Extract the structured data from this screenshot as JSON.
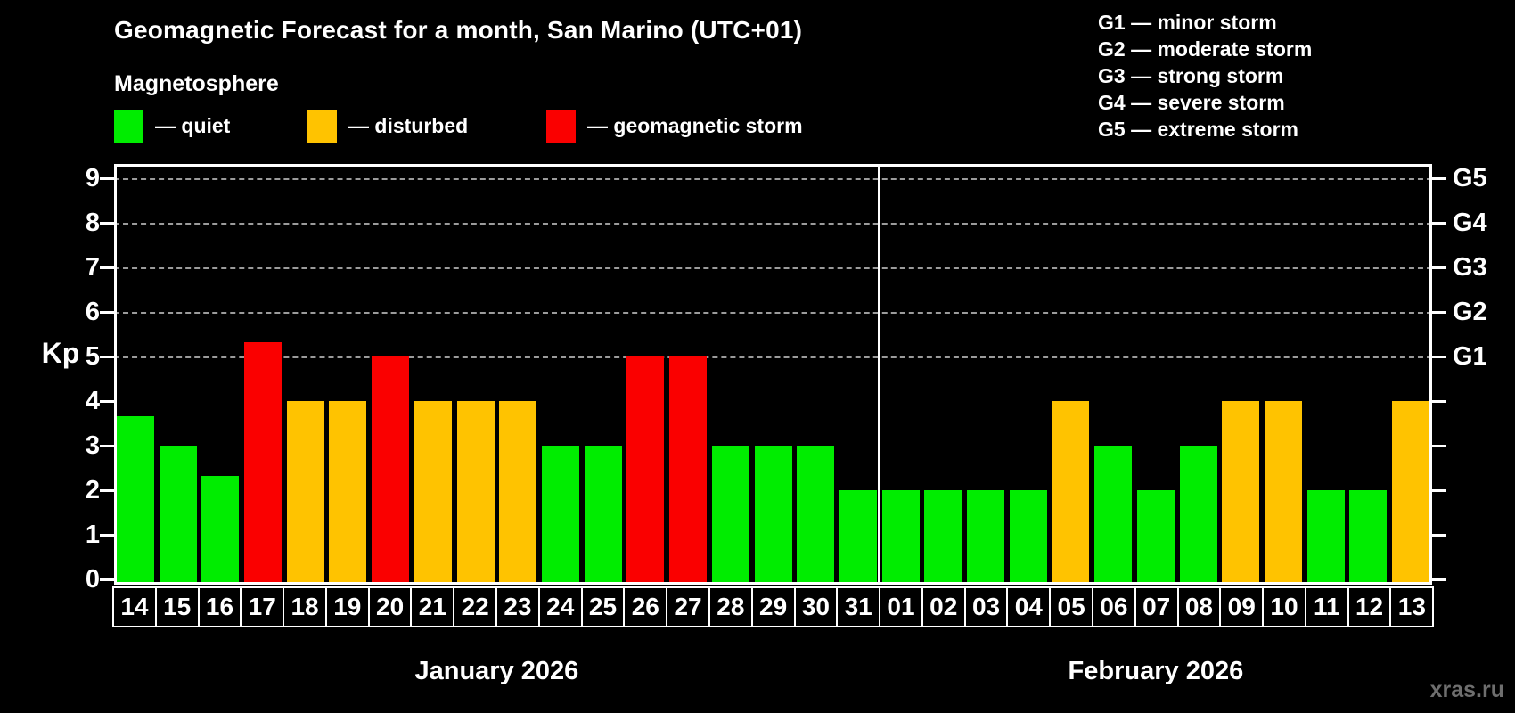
{
  "chart_data": {
    "type": "bar",
    "title": "Geomagnetic Forecast for a month, San Marino (UTC+01)",
    "legend": {
      "title": "Magnetosphere",
      "items": [
        {
          "status": "quiet",
          "color": "#00ed00",
          "label": "— quiet"
        },
        {
          "status": "disturbed",
          "color": "#ffc300",
          "label": "— disturbed"
        },
        {
          "status": "storm",
          "color": "#fa0000",
          "label": "— geomagnetic storm"
        }
      ]
    },
    "storm_scale": [
      "G1 — minor storm",
      "G2 — moderate storm",
      "G3 — strong storm",
      "G4 — severe storm",
      "G5 — extreme storm"
    ],
    "ylabel": "Kp",
    "ylim": [
      0,
      9
    ],
    "yticks": [
      0,
      1,
      2,
      3,
      4,
      5,
      6,
      7,
      8,
      9
    ],
    "grid_levels": [
      5,
      6,
      7,
      8,
      9
    ],
    "right_axis_labels": [
      {
        "kp": 5,
        "label": "G1"
      },
      {
        "kp": 6,
        "label": "G2"
      },
      {
        "kp": 7,
        "label": "G3"
      },
      {
        "kp": 8,
        "label": "G4"
      },
      {
        "kp": 9,
        "label": "G5"
      }
    ],
    "months": [
      {
        "label": "January 2026",
        "days": [
          "14",
          "15",
          "16",
          "17",
          "18",
          "19",
          "20",
          "21",
          "22",
          "23",
          "24",
          "25",
          "26",
          "27",
          "28",
          "29",
          "30",
          "31"
        ]
      },
      {
        "label": "February 2026",
        "days": [
          "01",
          "02",
          "03",
          "04",
          "05",
          "06",
          "07",
          "08",
          "09",
          "10",
          "11",
          "12",
          "13"
        ]
      }
    ],
    "values": [
      3.67,
      3,
      2.33,
      5.33,
      4,
      4,
      5,
      4,
      4,
      4,
      3,
      3,
      5,
      5,
      3,
      3,
      3,
      2,
      2,
      2,
      2,
      2,
      4,
      3,
      2,
      3,
      4,
      4,
      2,
      2,
      4
    ],
    "statuses": [
      "quiet",
      "quiet",
      "quiet",
      "storm",
      "disturbed",
      "disturbed",
      "storm",
      "disturbed",
      "disturbed",
      "disturbed",
      "quiet",
      "quiet",
      "storm",
      "storm",
      "quiet",
      "quiet",
      "quiet",
      "quiet",
      "quiet",
      "quiet",
      "quiet",
      "quiet",
      "disturbed",
      "quiet",
      "quiet",
      "quiet",
      "disturbed",
      "disturbed",
      "quiet",
      "quiet",
      "disturbed"
    ]
  },
  "watermark": "xras.ru"
}
